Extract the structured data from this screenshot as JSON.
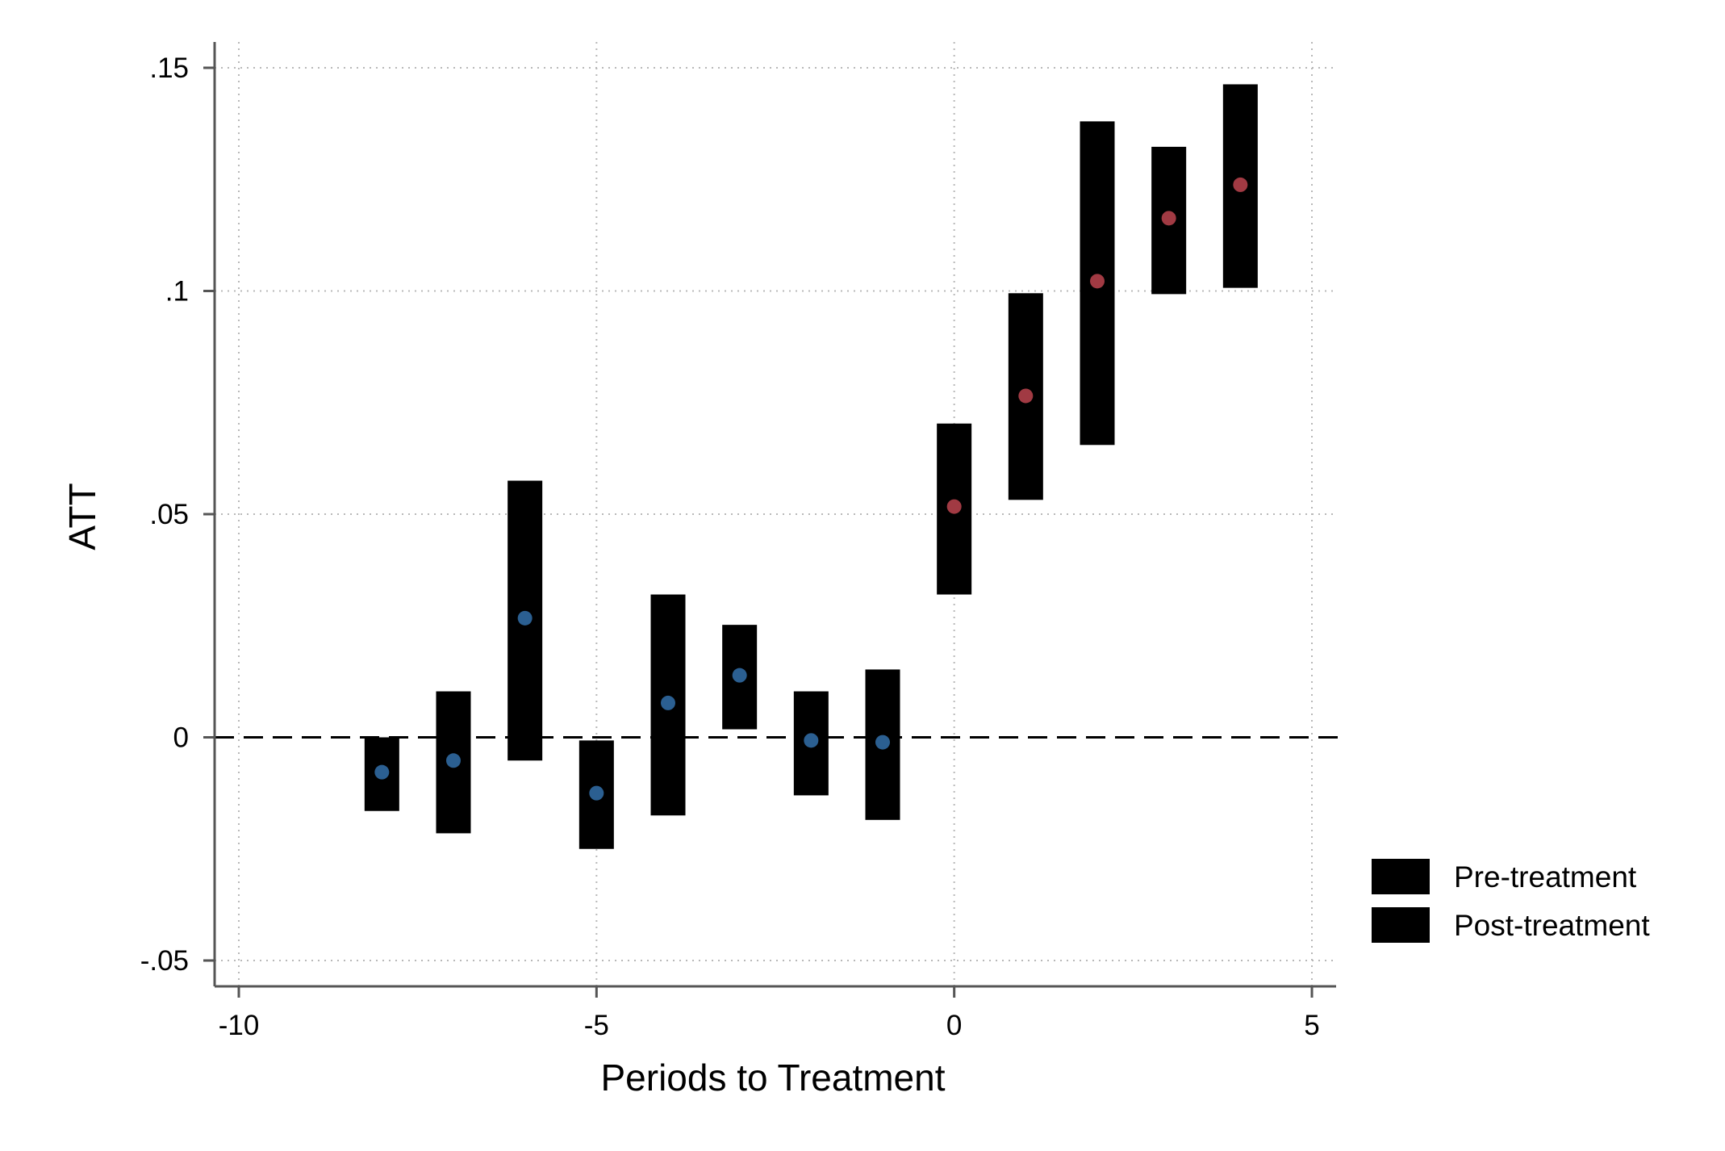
{
  "chart_data": {
    "type": "scatter",
    "title": "",
    "xlabel": "Periods to Treatment",
    "ylabel": "ATT",
    "xlim": [
      -10,
      5
    ],
    "ylim": [
      -0.05,
      0.15
    ],
    "xticks": [
      -10,
      -5,
      0,
      5
    ],
    "xtick_labels": [
      "-10",
      "-5",
      "0",
      "5"
    ],
    "yticks": [
      -0.05,
      0,
      0.05,
      0.1,
      0.15
    ],
    "ytick_labels": [
      "-.05",
      "0",
      ".05",
      ".1",
      ".15"
    ],
    "grid": true,
    "reference_line_y": 0,
    "legend_placement": "right, bottom",
    "series": [
      {
        "name": "Pre-treatment",
        "point_color": "#2b5f91",
        "bar_color": "#000000",
        "points": [
          {
            "x": -8,
            "y": -0.0078,
            "lo": -0.0165,
            "hi": 0.0
          },
          {
            "x": -7,
            "y": -0.0052,
            "lo": -0.0215,
            "hi": 0.0103
          },
          {
            "x": -6,
            "y": 0.0267,
            "lo": -0.0052,
            "hi": 0.0575
          },
          {
            "x": -5,
            "y": -0.0125,
            "lo": -0.025,
            "hi": -0.0007
          },
          {
            "x": -4,
            "y": 0.0077,
            "lo": -0.0175,
            "hi": 0.032
          },
          {
            "x": -3,
            "y": 0.0139,
            "lo": 0.0018,
            "hi": 0.0252
          },
          {
            "x": -2,
            "y": -0.0007,
            "lo": -0.013,
            "hi": 0.0103
          },
          {
            "x": -1,
            "y": -0.0011,
            "lo": -0.0185,
            "hi": 0.0152
          }
        ]
      },
      {
        "name": "Post-treatment",
        "point_color": "#a13a43",
        "bar_color": "#000000",
        "points": [
          {
            "x": 0,
            "y": 0.0517,
            "lo": 0.032,
            "hi": 0.0703
          },
          {
            "x": 1,
            "y": 0.0765,
            "lo": 0.0532,
            "hi": 0.0995
          },
          {
            "x": 2,
            "y": 0.1022,
            "lo": 0.0655,
            "hi": 0.138
          },
          {
            "x": 3,
            "y": 0.1163,
            "lo": 0.0993,
            "hi": 0.1323
          },
          {
            "x": 4,
            "y": 0.1238,
            "lo": 0.1007,
            "hi": 0.1463
          }
        ]
      }
    ]
  }
}
